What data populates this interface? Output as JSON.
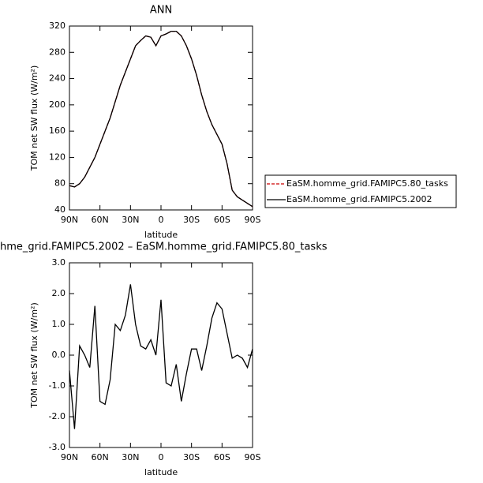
{
  "chart_data": [
    {
      "type": "line",
      "title": "ANN",
      "xlabel": "latitude",
      "ylabel": "TOM net SW flux (W/m²)",
      "x": [
        90,
        85,
        80,
        75,
        70,
        65,
        60,
        55,
        50,
        45,
        40,
        35,
        30,
        25,
        20,
        15,
        10,
        5,
        0,
        -5,
        -10,
        -15,
        -20,
        -25,
        -30,
        -35,
        -40,
        -45,
        -50,
        -55,
        -60,
        -65,
        -70,
        -75,
        -80,
        -85,
        -90
      ],
      "series": [
        {
          "name": "EaSM.homme_grid.FAMIPC5.80_tasks",
          "color": "#cc0000",
          "dash": true,
          "values": [
            77,
            75,
            80,
            90,
            105,
            120,
            140,
            160,
            180,
            205,
            230,
            250,
            270,
            290,
            298,
            305,
            303,
            290,
            305,
            308,
            312,
            312,
            305,
            290,
            270,
            245,
            215,
            190,
            170,
            155,
            140,
            110,
            70,
            60,
            55,
            50,
            45
          ]
        },
        {
          "name": "EaSM.homme_grid.FAMIPC5.2002",
          "color": "#000000",
          "dash": false,
          "values": [
            77,
            75,
            80,
            90,
            105,
            120,
            140,
            160,
            180,
            205,
            230,
            250,
            270,
            290,
            298,
            305,
            303,
            290,
            305,
            308,
            312,
            312,
            305,
            290,
            270,
            245,
            215,
            190,
            170,
            155,
            140,
            110,
            70,
            60,
            55,
            50,
            45
          ]
        }
      ],
      "xlim": [
        90,
        -90
      ],
      "xticks": [
        {
          "value": 90,
          "label": "90N"
        },
        {
          "value": 60,
          "label": "60N"
        },
        {
          "value": 30,
          "label": "30N"
        },
        0,
        {
          "value": -30,
          "label": "30S"
        },
        {
          "value": -60,
          "label": "60S"
        },
        {
          "value": -90,
          "label": "90S"
        }
      ],
      "ylim": [
        40,
        320
      ],
      "yticks": [
        40,
        80,
        120,
        160,
        200,
        240,
        280,
        320
      ],
      "legend": "right"
    },
    {
      "type": "line",
      "title": "hme_grid.FAMIPC5.2002 – EaSM.homme_grid.FAMIPC5.80_tasks",
      "xlabel": "latitude",
      "ylabel": "TOM net SW flux (W/m²)",
      "x": [
        90,
        85,
        80,
        75,
        70,
        65,
        60,
        55,
        50,
        45,
        40,
        35,
        30,
        25,
        20,
        15,
        10,
        5,
        0,
        -5,
        -10,
        -15,
        -20,
        -25,
        -30,
        -35,
        -40,
        -45,
        -50,
        -55,
        -60,
        -65,
        -70,
        -75,
        -80,
        -85,
        -90
      ],
      "series": [
        {
          "color": "#000000",
          "dash": false,
          "values": [
            -0.5,
            -2.4,
            0.3,
            0.0,
            -0.4,
            1.6,
            -1.5,
            -1.6,
            -0.8,
            1.0,
            0.8,
            1.3,
            2.3,
            1.0,
            0.3,
            0.2,
            0.5,
            0.0,
            1.8,
            -0.9,
            -1.0,
            -0.3,
            -1.5,
            -0.6,
            0.2,
            0.2,
            -0.5,
            0.3,
            1.2,
            1.7,
            1.5,
            0.7,
            -0.1,
            0.0,
            -0.1,
            -0.4,
            0.2
          ]
        }
      ],
      "xlim": [
        90,
        -90
      ],
      "xticks": [
        {
          "value": 90,
          "label": "90N"
        },
        {
          "value": 60,
          "label": "60N"
        },
        {
          "value": 30,
          "label": "30N"
        },
        0,
        {
          "value": -30,
          "label": "30S"
        },
        {
          "value": -60,
          "label": "60S"
        },
        {
          "value": -90,
          "label": "90S"
        }
      ],
      "ylim": [
        -3,
        3
      ],
      "yticks": [
        {
          "value": -3,
          "label": "-3.0"
        },
        {
          "value": -2,
          "label": "-2.0"
        },
        {
          "value": -1,
          "label": "-1.0"
        },
        {
          "value": 0,
          "label": "0.0"
        },
        {
          "value": 1,
          "label": "1.0"
        },
        {
          "value": 2,
          "label": "2.0"
        },
        {
          "value": 3,
          "label": "3.0"
        }
      ]
    }
  ]
}
